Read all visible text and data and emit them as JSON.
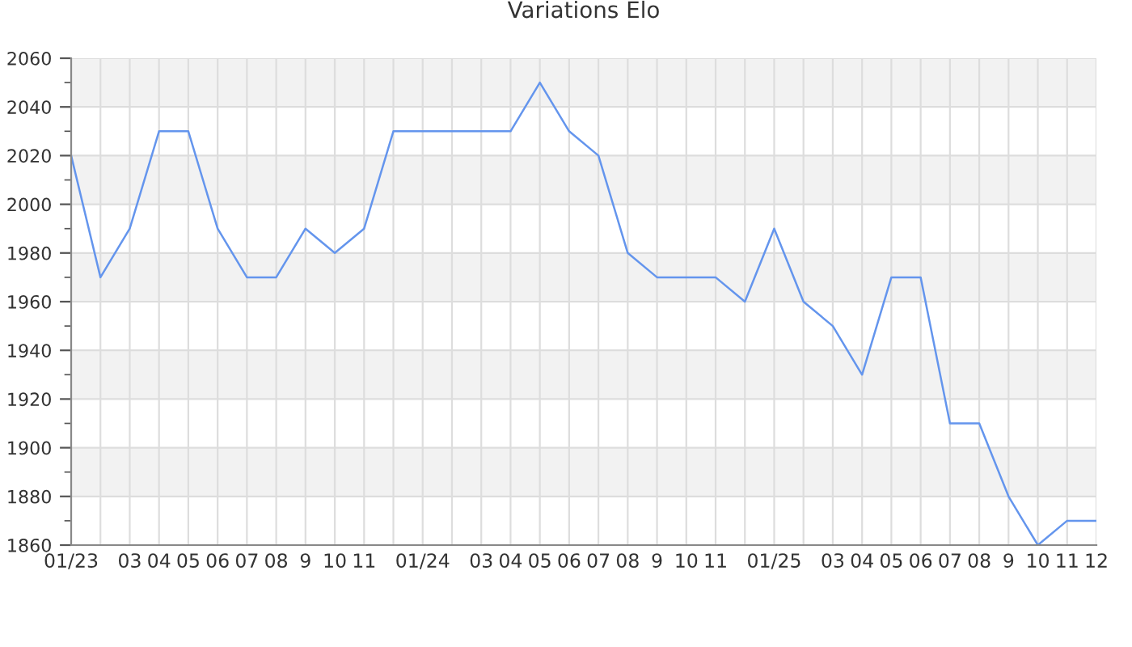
{
  "chart_data": {
    "type": "line",
    "title": "Variations Elo",
    "categories": [
      "01/23",
      null,
      "03",
      "04",
      "05",
      "06",
      "07",
      "08",
      "9",
      "10",
      "11",
      null,
      "01/24",
      null,
      "03",
      "04",
      "05",
      "06",
      "07",
      "08",
      "9",
      "10",
      "11",
      null,
      "01/25",
      null,
      "03",
      "04",
      "05",
      "06",
      "07",
      "08",
      "9",
      "10",
      "11",
      "12"
    ],
    "series": [
      {
        "color": "#6495ed",
        "values": [
          2020,
          1970,
          1990,
          2030,
          2030,
          1990,
          1970,
          1970,
          1990,
          1980,
          1990,
          2030,
          2030,
          2030,
          2030,
          2030,
          2050,
          2030,
          2020,
          1980,
          1970,
          1970,
          1970,
          1960,
          1990,
          1960,
          1950,
          1930,
          1970,
          1970,
          1910,
          1910,
          1880,
          1860,
          1870,
          1870
        ]
      }
    ],
    "ylim": [
      1860,
      2060
    ],
    "yticks": [
      1860,
      {
        "value": 1870,
        "label": null
      },
      1880,
      {
        "value": 1890,
        "label": null
      },
      1900,
      {
        "value": 1910,
        "label": null
      },
      1920,
      {
        "value": 1930,
        "label": null
      },
      1940,
      {
        "value": 1950,
        "label": null
      },
      1960,
      {
        "value": 1970,
        "label": null
      },
      1980,
      {
        "value": 1990,
        "label": null
      },
      2000,
      {
        "value": 2010,
        "label": null
      },
      2020,
      {
        "value": 2030,
        "label": null
      },
      2040,
      {
        "value": 2050,
        "label": null
      },
      2060
    ],
    "grid": true,
    "marker": "none",
    "line_style": "solid",
    "legend": false
  }
}
